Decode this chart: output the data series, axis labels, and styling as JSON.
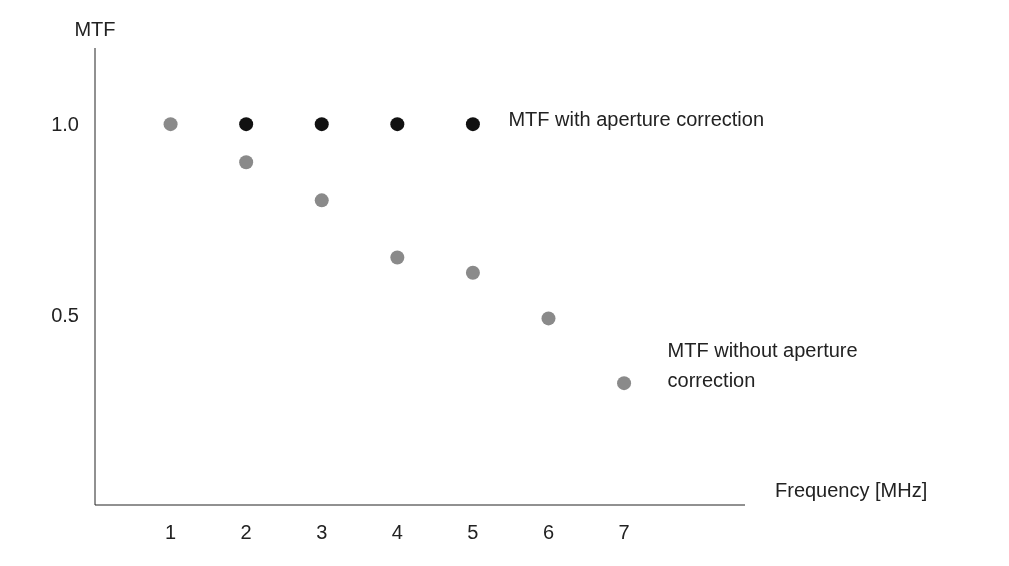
{
  "chart_data": {
    "type": "scatter",
    "xlabel": "Frequency [MHz]",
    "ylabel": "MTF",
    "xlim": [
      0,
      8.6
    ],
    "ylim": [
      0,
      1.2
    ],
    "xticks": [
      1,
      2,
      3,
      4,
      5,
      6,
      7
    ],
    "yticks": [
      {
        "value": 0.5,
        "label": "0.5"
      },
      {
        "value": 1,
        "label": "1.0"
      }
    ],
    "grid": false,
    "legend": false,
    "marker": "circle",
    "series": [
      {
        "name": "MTF with aperture correction",
        "color": "#111111",
        "x": [
          2,
          3,
          4,
          5
        ],
        "values": [
          1,
          1,
          1,
          1
        ]
      },
      {
        "name": "MTF without aperture correction",
        "color": "#8a8a8a",
        "x": [
          1,
          2,
          3,
          4,
          5,
          6,
          7
        ],
        "values": [
          1,
          0.9,
          0.8,
          0.65,
          0.61,
          0.49,
          0.32
        ]
      }
    ]
  }
}
